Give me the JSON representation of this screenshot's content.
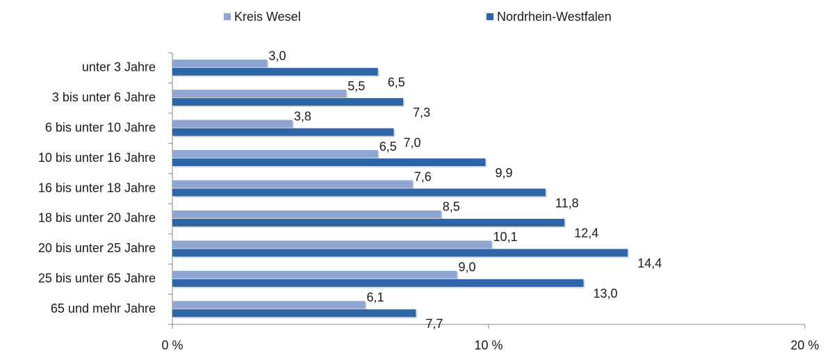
{
  "chart_data": {
    "type": "bar",
    "orientation": "horizontal",
    "categories": [
      "unter 3 Jahre",
      "3 bis unter 6 Jahre",
      "6 bis unter 10 Jahre",
      "10 bis unter 16 Jahre",
      "16 bis unter 18 Jahre",
      "18 bis unter 20 Jahre",
      "20 bis unter 25 Jahre",
      "25 bis unter 65 Jahre",
      "65 und mehr Jahre"
    ],
    "series": [
      {
        "name": "Kreis Wesel",
        "color": "#8ea6d1",
        "values": [
          3.0,
          5.5,
          3.8,
          6.5,
          7.6,
          8.5,
          10.1,
          9.0,
          6.1
        ],
        "value_labels": [
          "3,0",
          "5,5",
          "3,8",
          "6,5",
          "7,6",
          "8,5",
          "10,1",
          "9,0",
          "6,1"
        ]
      },
      {
        "name": "Nordrhein-Westfalen",
        "color": "#2e65a6",
        "values": [
          6.5,
          7.3,
          7.0,
          9.9,
          11.8,
          12.4,
          14.4,
          13.0,
          7.7
        ],
        "value_labels": [
          "6,5",
          "7,3",
          "7,0",
          "9,9",
          "11,8",
          "12,4",
          "14,4",
          "13,0",
          "7,7"
        ]
      }
    ],
    "xlim": [
      0,
      20
    ],
    "xticks": [
      {
        "value": 0,
        "label": "0 %"
      },
      {
        "value": 10,
        "label": "10 %"
      },
      {
        "value": 20,
        "label": "20 %"
      }
    ],
    "legend": "top"
  }
}
